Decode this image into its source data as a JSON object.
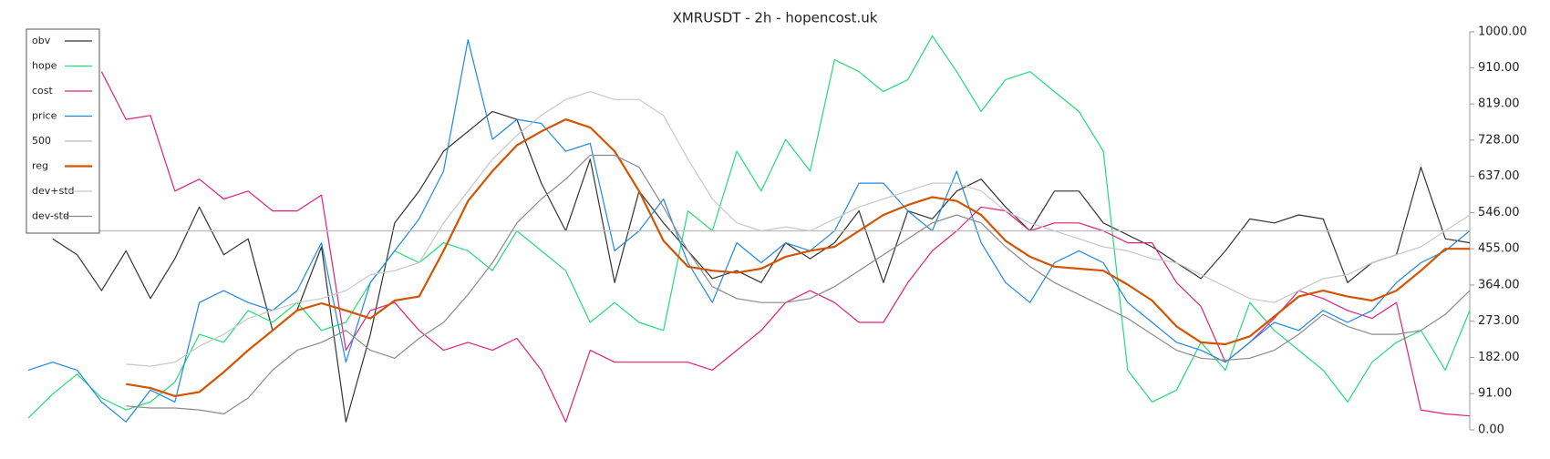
{
  "chart_data": {
    "type": "line",
    "title": "XMRUSDT - 2h - hopencost.uk",
    "ylim": [
      0,
      1000
    ],
    "yticks": [
      {
        "value": 0,
        "label": "0.00"
      },
      {
        "value": 91,
        "label": "91.00"
      },
      {
        "value": 182,
        "label": "182.00"
      },
      {
        "value": 273,
        "label": "273.00"
      },
      {
        "value": 364,
        "label": "364.00"
      },
      {
        "value": 455,
        "label": "455.00"
      },
      {
        "value": 546,
        "label": "546.00"
      },
      {
        "value": 637,
        "label": "637.00"
      },
      {
        "value": 728,
        "label": "728.00"
      },
      {
        "value": 819,
        "label": "819.00"
      },
      {
        "value": 910,
        "label": "910.00"
      },
      {
        "value": 1000,
        "label": "1000.00"
      }
    ],
    "yaxis_side": "right",
    "legend": "upper left",
    "series": [
      {
        "name": "obv",
        "color": "#333333",
        "width": 1.2,
        "values": [
          null,
          480,
          440,
          350,
          450,
          330,
          430,
          560,
          440,
          480,
          250,
          300,
          460,
          20,
          240,
          520,
          600,
          700,
          750,
          800,
          780,
          620,
          500,
          680,
          370,
          600,
          520,
          450,
          380,
          400,
          370,
          470,
          430,
          470,
          550,
          370,
          550,
          530,
          600,
          630,
          560,
          500,
          600,
          600,
          520,
          490,
          460,
          420,
          380,
          450,
          530,
          520,
          540,
          530,
          370,
          420,
          440,
          660,
          480,
          470
        ]
      },
      {
        "name": "hope",
        "color": "#22dd77",
        "width": 1.2,
        "values": [
          30,
          90,
          140,
          80,
          50,
          70,
          120,
          240,
          220,
          300,
          270,
          320,
          250,
          270,
          370,
          450,
          420,
          470,
          450,
          400,
          500,
          450,
          400,
          270,
          320,
          270,
          250,
          550,
          500,
          700,
          600,
          730,
          650,
          930,
          900,
          850,
          880,
          990,
          900,
          800,
          880,
          900,
          850,
          800,
          700,
          150,
          70,
          100,
          220,
          150,
          320,
          250,
          200,
          150,
          70,
          170,
          220,
          250,
          150,
          300
        ]
      },
      {
        "name": "cost",
        "color": "#e0207a",
        "width": 1.2,
        "values": [
          null,
          null,
          null,
          900,
          780,
          790,
          600,
          630,
          580,
          600,
          550,
          550,
          590,
          200,
          300,
          320,
          250,
          200,
          220,
          200,
          230,
          150,
          20,
          200,
          170,
          170,
          170,
          170,
          150,
          200,
          250,
          320,
          350,
          320,
          270,
          270,
          370,
          450,
          500,
          560,
          550,
          500,
          520,
          520,
          500,
          470,
          470,
          370,
          310,
          170,
          220,
          280,
          350,
          330,
          300,
          280,
          320,
          50,
          40,
          35
        ]
      },
      {
        "name": "price",
        "color": "#1e88e5",
        "width": 1.2,
        "values": [
          150,
          170,
          150,
          70,
          20,
          100,
          70,
          320,
          350,
          320,
          300,
          350,
          470,
          170,
          370,
          450,
          530,
          650,
          980,
          730,
          780,
          770,
          700,
          720,
          450,
          500,
          580,
          420,
          320,
          470,
          420,
          470,
          450,
          500,
          620,
          620,
          550,
          500,
          650,
          470,
          370,
          320,
          420,
          450,
          420,
          320,
          270,
          220,
          200,
          170,
          220,
          270,
          250,
          300,
          270,
          300,
          370,
          420,
          450,
          500
        ]
      },
      {
        "name": "500",
        "color": "#bbbbbb",
        "width": 1.2,
        "values": [
          500,
          500,
          500,
          500,
          500,
          500,
          500,
          500,
          500,
          500,
          500,
          500,
          500,
          500,
          500,
          500,
          500,
          500,
          500,
          500,
          500,
          500,
          500,
          500,
          500,
          500,
          500,
          500,
          500,
          500,
          500,
          500,
          500,
          500,
          500,
          500,
          500,
          500,
          500,
          500,
          500,
          500,
          500,
          500,
          500,
          500,
          500,
          500,
          500,
          500,
          500,
          500,
          500,
          500,
          500,
          500,
          500,
          500,
          500,
          500
        ]
      },
      {
        "name": "reg",
        "color": "#d35400",
        "width": 2.2,
        "values": [
          null,
          null,
          null,
          null,
          115,
          105,
          85,
          95,
          145,
          200,
          250,
          300,
          318,
          300,
          280,
          325,
          335,
          450,
          575,
          650,
          715,
          750,
          780,
          760,
          700,
          600,
          475,
          410,
          400,
          395,
          405,
          435,
          450,
          460,
          500,
          540,
          565,
          585,
          575,
          540,
          475,
          435,
          410,
          405,
          400,
          365,
          325,
          260,
          220,
          215,
          235,
          285,
          335,
          350,
          335,
          325,
          350,
          400,
          455,
          455
        ]
      },
      {
        "name": "dev+std",
        "color": "#c8c8c8",
        "width": 1.2,
        "values": [
          null,
          null,
          null,
          null,
          165,
          160,
          170,
          210,
          240,
          280,
          300,
          320,
          330,
          350,
          390,
          400,
          420,
          520,
          600,
          680,
          740,
          790,
          830,
          850,
          830,
          830,
          790,
          680,
          580,
          520,
          500,
          510,
          500,
          530,
          560,
          580,
          600,
          620,
          620,
          600,
          550,
          520,
          500,
          480,
          460,
          450,
          430,
          420,
          390,
          360,
          330,
          320,
          350,
          380,
          390,
          420,
          440,
          460,
          500,
          540
        ]
      },
      {
        "name": "dev-std",
        "color": "#8a8a8a",
        "width": 1.2,
        "values": [
          null,
          null,
          null,
          null,
          60,
          55,
          55,
          50,
          40,
          80,
          150,
          200,
          220,
          250,
          200,
          180,
          230,
          270,
          340,
          420,
          520,
          580,
          630,
          690,
          690,
          660,
          560,
          450,
          360,
          330,
          320,
          320,
          330,
          360,
          400,
          440,
          480,
          520,
          540,
          520,
          460,
          410,
          370,
          340,
          310,
          280,
          240,
          200,
          180,
          175,
          180,
          200,
          240,
          290,
          260,
          240,
          240,
          250,
          290,
          350
        ]
      }
    ]
  }
}
